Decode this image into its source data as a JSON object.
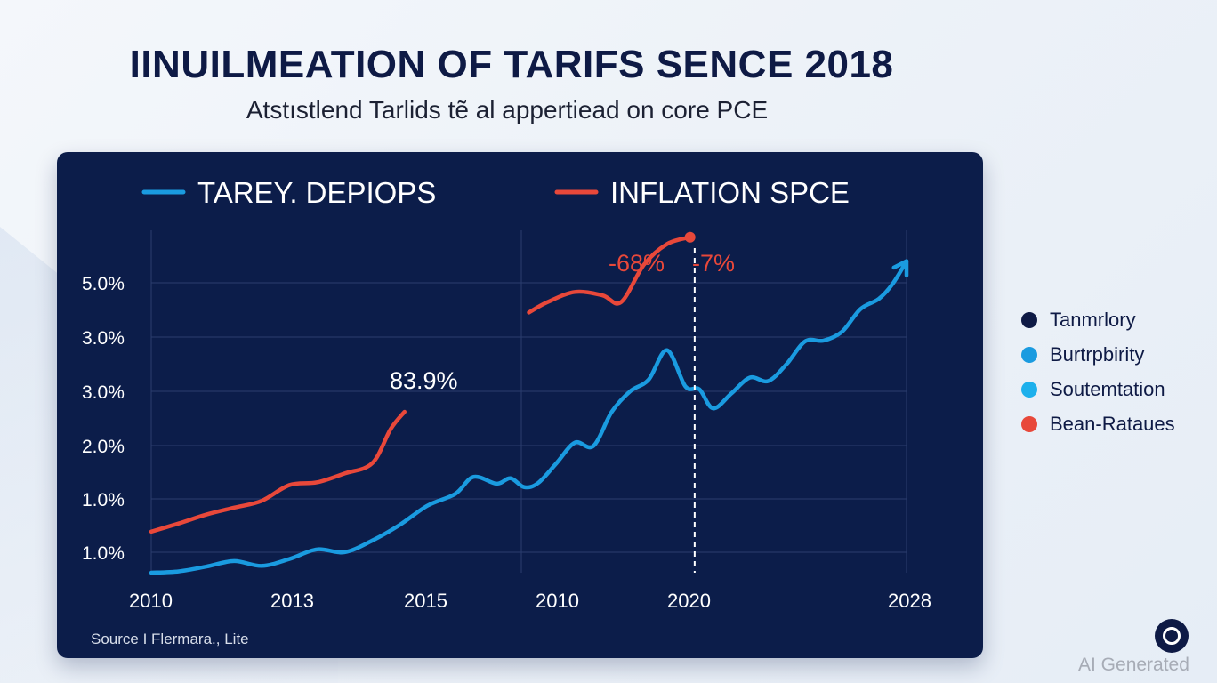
{
  "title": "IINUILMEATION OF TARIFS SENCE 2018",
  "subtitle": "Atstıstlend Tarlids tẽ al appertiead on core PCE",
  "source": "Source I Flermara., Lite",
  "watermark": "AI Generated",
  "legend_items": [
    {
      "label": "Tanmrlory",
      "color": "#0e1a45"
    },
    {
      "label": "Burtrpbirity",
      "color": "#1a9be0"
    },
    {
      "label": "Soutemtation",
      "color": "#1db0ec"
    },
    {
      "label": "Bean-Rataues",
      "color": "#e8483a"
    }
  ],
  "chart_data": {
    "type": "line",
    "title": "IINUILMEATION OF TARIFS SENCE 2018",
    "subtitle": "Atstıstlend Tarlids tẽ al appertiead on core PCE",
    "header_legend": [
      "TAREY. DEPIOPS",
      "INFLATION SPCE"
    ],
    "y_tick_labels": [
      "5.0%",
      "3.0%",
      "3.0%",
      "2.0%",
      "1.0%",
      "1.0%"
    ],
    "x_tick_labels": [
      "2010",
      "2013",
      "2015",
      "2010",
      "2020",
      "2028"
    ],
    "grid": true,
    "annotations": [
      "83.9%",
      "-68%",
      "-7%"
    ],
    "series": [
      {
        "name": "TAREY. DEPIOPS",
        "color": "#1a9be0",
        "x": [
          0,
          0.3,
          0.6,
          0.9,
          1.2,
          1.5,
          1.8,
          2.1,
          2.4,
          2.7,
          3.0,
          3.3,
          3.5,
          3.75,
          3.9,
          4.05,
          4.2,
          4.4,
          4.6,
          4.8,
          5.0,
          5.2,
          5.4,
          5.6,
          5.8,
          5.95,
          6.1,
          6.3,
          6.5,
          6.7,
          6.9,
          7.1,
          7.3,
          7.5,
          7.7,
          7.9,
          8.05,
          8.2
        ],
        "y": [
          0.0,
          0.02,
          0.09,
          0.17,
          0.1,
          0.2,
          0.34,
          0.3,
          0.47,
          0.7,
          0.98,
          1.15,
          1.4,
          1.3,
          1.38,
          1.25,
          1.31,
          1.6,
          1.9,
          1.85,
          2.35,
          2.65,
          2.82,
          3.25,
          2.72,
          2.68,
          2.4,
          2.62,
          2.85,
          2.8,
          3.05,
          3.38,
          3.39,
          3.52,
          3.85,
          4.0,
          4.22,
          4.55
        ]
      },
      {
        "name": "INFLATION SPCE",
        "color": "#e8483a",
        "x": [
          0,
          0.3,
          0.6,
          0.9,
          1.2,
          1.5,
          1.8,
          2.1,
          2.4,
          2.6,
          2.75
        ],
        "y": [
          0.6,
          0.72,
          0.85,
          0.95,
          1.05,
          1.28,
          1.32,
          1.45,
          1.6,
          2.1,
          2.35
        ]
      },
      {
        "name": "INFLATION SPCE",
        "color": "#e8483a",
        "x": [
          4.1,
          4.3,
          4.6,
          4.9,
          5.1,
          5.35,
          5.6,
          5.85
        ],
        "y": [
          3.8,
          3.95,
          4.1,
          4.05,
          3.95,
          4.5,
          4.8,
          4.9
        ]
      }
    ],
    "vline_at_x": 5.9
  }
}
